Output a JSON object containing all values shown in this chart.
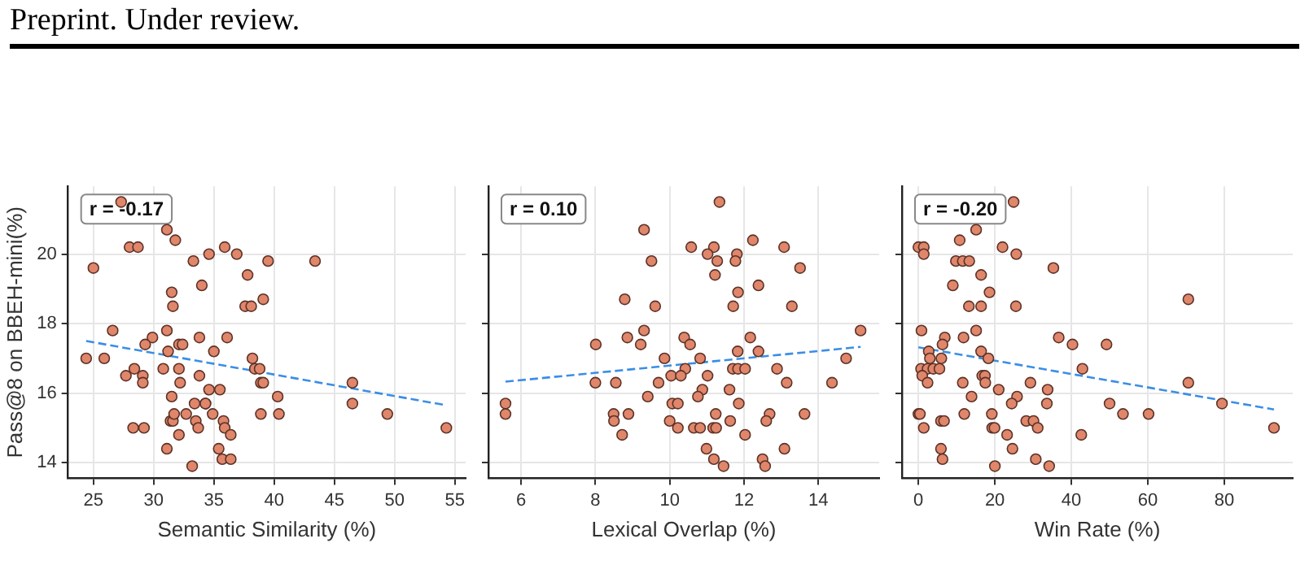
{
  "chart_data": [
    {
      "type": "scatter",
      "title": "Preprint. Under review.",
      "xlabel": "Semantic Similarity (%)",
      "ylabel": "Pass@8 on BBEH-mini(%)",
      "annotations": [
        "r = -0.17"
      ],
      "xlim": [
        22.9,
        55.9
      ],
      "ylim": [
        13.55,
        21.95
      ],
      "xticks": [
        25,
        30,
        35,
        40,
        45,
        50,
        55
      ],
      "yticks": [
        14,
        16,
        18,
        20
      ],
      "grid": true,
      "legend": false,
      "marker": "circle",
      "series": [
        {
          "type": "scatter",
          "color": "#e0866b",
          "x": [
            27.3,
            31.1,
            28.0,
            28.7,
            31.8,
            35.9,
            25.0,
            33.3,
            34.6,
            36.9,
            39.5,
            43.4,
            31.5,
            34.0,
            37.8,
            39.1,
            31.6,
            37.6,
            38.1,
            26.6,
            31.1,
            29.9,
            29.3,
            33.8,
            36.1,
            31.2,
            32.1,
            32.4,
            35.0,
            24.4,
            25.9,
            38.2,
            28.4,
            30.8,
            32.1,
            38.4,
            38.8,
            27.7,
            29.1,
            33.8,
            29.1,
            32.2,
            38.9,
            39.1,
            46.5,
            34.6,
            35.5,
            31.5,
            40.3,
            33.4,
            34.3,
            34.3,
            46.5,
            31.4,
            31.6,
            33.5,
            35.8,
            31.7,
            32.7,
            34.9,
            38.9,
            40.4,
            49.4,
            28.3,
            29.2,
            33.7,
            35.9,
            54.3,
            32.1,
            36.4,
            31.1,
            35.4,
            35.7,
            36.4,
            33.2
          ],
          "values": [
            21.5,
            20.7,
            20.2,
            20.2,
            20.4,
            20.2,
            19.6,
            19.8,
            20.0,
            20.0,
            19.8,
            19.8,
            18.9,
            19.1,
            19.4,
            18.7,
            18.5,
            18.5,
            18.5,
            17.8,
            17.8,
            17.6,
            17.4,
            17.6,
            17.6,
            17.2,
            17.4,
            17.4,
            17.2,
            17.0,
            17.0,
            17.0,
            16.7,
            16.7,
            16.7,
            16.7,
            16.7,
            16.5,
            16.5,
            16.5,
            16.3,
            16.3,
            16.3,
            16.3,
            16.3,
            16.1,
            16.1,
            15.9,
            15.9,
            15.7,
            15.7,
            15.7,
            15.7,
            15.2,
            15.2,
            15.2,
            15.2,
            15.4,
            15.4,
            15.4,
            15.4,
            15.4,
            15.4,
            15.0,
            15.0,
            15.0,
            15.0,
            15.0,
            14.8,
            14.8,
            14.4,
            14.4,
            14.1,
            14.1,
            13.9
          ]
        },
        {
          "type": "line",
          "color": "#3a8ee6",
          "line_style": "dashed",
          "marker": "none",
          "x": [
            24.4,
            54.3
          ],
          "values": [
            17.5,
            15.65
          ]
        }
      ]
    },
    {
      "type": "scatter",
      "xlabel": "Lexical Overlap (%)",
      "annotations": [
        "r = 0.10"
      ],
      "xlim": [
        5.12,
        15.64
      ],
      "ylim": [
        13.55,
        21.95
      ],
      "xticks": [
        6,
        8,
        10,
        12,
        14
      ],
      "yticks": [
        14,
        16,
        18,
        20
      ],
      "tick_labels": "x",
      "grid": true,
      "legend": false,
      "marker": "circle",
      "series": [
        {
          "type": "scatter",
          "color": "#e0866b",
          "x": [
            11.34,
            9.31,
            10.58,
            11.19,
            12.24,
            13.08,
            11.02,
            11.81,
            9.51,
            11.28,
            11.77,
            13.51,
            11.22,
            12.39,
            11.84,
            8.79,
            9.61,
            11.71,
            13.29,
            9.31,
            15.14,
            8.86,
            10.39,
            12.17,
            8.01,
            9.22,
            10.55,
            11.83,
            12.39,
            9.86,
            10.82,
            10.42,
            11.7,
            11.84,
            12.03,
            12.89,
            14.75,
            10.04,
            10.3,
            11.02,
            8.0,
            8.55,
            9.7,
            13.15,
            14.37,
            10.88,
            11.61,
            9.41,
            10.76,
            5.58,
            10.07,
            10.22,
            11.86,
            5.58,
            8.49,
            8.89,
            11.24,
            12.69,
            13.63,
            8.5,
            10.0,
            11.63,
            12.6,
            10.22,
            10.65,
            10.82,
            11.17,
            11.25,
            8.72,
            12.03,
            10.99,
            13.09,
            11.19,
            12.5,
            11.45,
            12.57
          ],
          "values": [
            21.5,
            20.7,
            20.2,
            20.2,
            20.4,
            20.2,
            20.0,
            20.0,
            19.8,
            19.8,
            19.8,
            19.6,
            19.4,
            19.1,
            18.9,
            18.7,
            18.5,
            18.5,
            18.5,
            17.8,
            17.8,
            17.6,
            17.6,
            17.6,
            17.4,
            17.4,
            17.4,
            17.2,
            17.2,
            17.0,
            17.0,
            16.7,
            16.7,
            16.7,
            16.7,
            16.7,
            17.0,
            16.5,
            16.5,
            16.5,
            16.3,
            16.3,
            16.3,
            16.3,
            16.3,
            16.1,
            16.1,
            15.9,
            15.9,
            15.7,
            15.7,
            15.7,
            15.7,
            15.4,
            15.4,
            15.4,
            15.4,
            15.4,
            15.4,
            15.2,
            15.2,
            15.2,
            15.2,
            15.0,
            15.0,
            15.0,
            15.0,
            15.0,
            14.8,
            14.8,
            14.4,
            14.4,
            14.1,
            14.1,
            13.9,
            13.9
          ]
        },
        {
          "type": "line",
          "color": "#3a8ee6",
          "line_style": "dashed",
          "marker": "none",
          "x": [
            5.58,
            15.14
          ],
          "values": [
            16.33,
            17.33
          ]
        }
      ]
    },
    {
      "type": "scatter",
      "xlabel": "Win Rate (%)",
      "annotations": [
        "r = -0.20"
      ],
      "xlim": [
        -4.3,
        97.9
      ],
      "ylim": [
        13.55,
        21.95
      ],
      "xticks": [
        0,
        20,
        40,
        60,
        80
      ],
      "yticks": [
        14,
        16,
        18,
        20
      ],
      "tick_labels": "x",
      "grid": true,
      "legend": false,
      "marker": "circle",
      "series": [
        {
          "type": "scatter",
          "color": "#e0866b",
          "x": [
            24.9,
            15.1,
            10.8,
            0,
            1.4,
            22.0,
            1.4,
            25.6,
            9.8,
            11.6,
            13.3,
            35.3,
            16.4,
            9.0,
            18.6,
            70.6,
            13.2,
            16.4,
            25.5,
            0.8,
            15.1,
            6.9,
            11.8,
            36.7,
            40.3,
            49.2,
            6.3,
            2.7,
            16.4,
            3.0,
            6.0,
            18.3,
            0.7,
            2.4,
            3.9,
            5.5,
            42.9,
            1.0,
            16.7,
            17.4,
            2.4,
            11.6,
            17.5,
            29.3,
            70.6,
            21.0,
            33.8,
            13.9,
            25.8,
            24.4,
            33.6,
            50.0,
            79.4,
            0,
            0.4,
            12.0,
            19.2,
            53.5,
            60.2,
            5.9,
            6.7,
            28.2,
            30.1,
            1.4,
            19.3,
            19.9,
            31.2,
            93.0,
            23.2,
            42.6,
            5.9,
            24.6,
            6.3,
            30.7,
            20.0,
            34.2
          ],
          "values": [
            21.5,
            20.7,
            20.4,
            20.2,
            20.2,
            20.2,
            20.0,
            20.0,
            19.8,
            19.8,
            19.8,
            19.6,
            19.4,
            19.1,
            18.9,
            18.7,
            18.5,
            18.5,
            18.5,
            17.8,
            17.8,
            17.6,
            17.6,
            17.6,
            17.4,
            17.4,
            17.4,
            17.2,
            17.2,
            17.0,
            17.0,
            17.0,
            16.7,
            16.7,
            16.7,
            16.7,
            16.7,
            16.5,
            16.5,
            16.5,
            16.3,
            16.3,
            16.3,
            16.3,
            16.3,
            16.1,
            16.1,
            15.9,
            15.9,
            15.7,
            15.7,
            15.7,
            15.7,
            15.4,
            15.4,
            15.4,
            15.4,
            15.4,
            15.4,
            15.2,
            15.2,
            15.2,
            15.2,
            15.0,
            15.0,
            15.0,
            15.0,
            15.0,
            14.8,
            14.8,
            14.4,
            14.4,
            14.1,
            14.1,
            13.9,
            13.9
          ]
        },
        {
          "type": "line",
          "color": "#3a8ee6",
          "line_style": "dashed",
          "marker": "none",
          "x": [
            0,
            93.0
          ],
          "values": [
            17.32,
            15.53
          ]
        }
      ]
    }
  ]
}
